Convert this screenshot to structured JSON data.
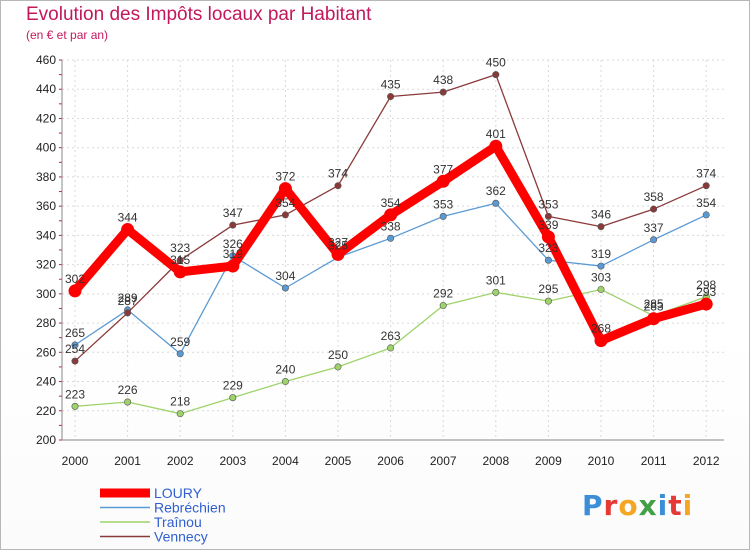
{
  "header": {
    "title": "Evolution des Impôts locaux par Habitant",
    "subtitle": "(en € et par an)"
  },
  "logo": {
    "text": "Proxiti",
    "colors": [
      "#3b8fd8",
      "#e53935",
      "#f5a623",
      "#43a047",
      "#3b8fd8",
      "#e53935",
      "#f5a623"
    ]
  },
  "chart_data": {
    "type": "line",
    "title": "Evolution des Impôts locaux par Habitant",
    "subtitle": "(en € et par an)",
    "xlabel": "",
    "ylabel": "",
    "ylim": [
      200,
      460
    ],
    "yticks": [
      200,
      220,
      240,
      260,
      280,
      300,
      320,
      340,
      360,
      380,
      400,
      420,
      440,
      460
    ],
    "grid": true,
    "legend_position": "bottom-left",
    "categories": [
      "2000",
      "2001",
      "2002",
      "2003",
      "2004",
      "2005",
      "2006",
      "2007",
      "2008",
      "2009",
      "2010",
      "2011",
      "2012"
    ],
    "series": [
      {
        "name": "LOURY",
        "color": "#ff0000",
        "thick": true,
        "values": [
          302,
          344,
          315,
          319,
          372,
          327,
          354,
          377,
          401,
          339,
          268,
          283,
          293
        ],
        "labels": [
          "302",
          "344",
          "315",
          "319",
          "372",
          "327",
          "354",
          "377",
          "401",
          "339",
          "268",
          "283",
          "293"
        ]
      },
      {
        "name": "Rebréchien",
        "color": "#5b9bd5",
        "thick": false,
        "values": [
          265,
          289,
          259,
          326,
          304,
          325,
          338,
          353,
          362,
          323,
          319,
          337,
          354
        ],
        "labels": [
          "265",
          "289",
          "259",
          "326",
          "304",
          "325",
          "338",
          "353",
          "362",
          "323",
          "319",
          "337",
          "354"
        ]
      },
      {
        "name": "Traînou",
        "color": "#9ed36a",
        "thick": false,
        "values": [
          223,
          226,
          218,
          229,
          240,
          250,
          263,
          292,
          301,
          295,
          303,
          285,
          298
        ],
        "labels": [
          "223",
          "226",
          "218",
          "229",
          "240",
          "250",
          "263",
          "292",
          "301",
          "295",
          "303",
          "285",
          "298"
        ]
      },
      {
        "name": "Vennecy",
        "color": "#8b3a3a",
        "thick": false,
        "values": [
          254,
          287,
          323,
          347,
          354,
          374,
          435,
          438,
          450,
          353,
          346,
          358,
          374
        ],
        "labels": [
          "254",
          "287",
          "323",
          "347",
          "354",
          "374",
          "435",
          "438",
          "450",
          "353",
          "346",
          "358",
          "374"
        ]
      }
    ]
  }
}
